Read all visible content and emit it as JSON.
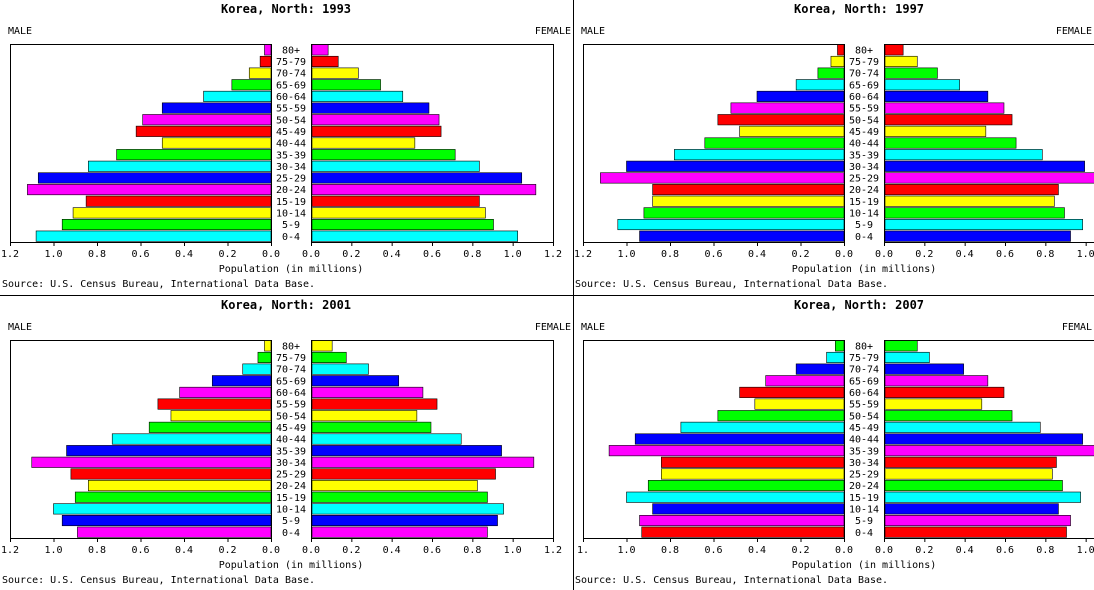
{
  "chart_data": [
    {
      "type": "bar",
      "title": "Korea, North: 1993",
      "left_label": "MALE",
      "right_label": "FEMALE",
      "xlabel": "Population (in millions)",
      "source": "Source: U.S. Census Bureau, International Data Base.",
      "xlim": [
        0,
        1.2
      ],
      "ticks": [
        "0.0",
        "0.2",
        "0.4",
        "0.6",
        "0.8",
        "1.0",
        "1.2"
      ],
      "categories": [
        "0-4",
        "5-9",
        "10-14",
        "15-19",
        "20-24",
        "25-29",
        "30-34",
        "35-39",
        "40-44",
        "45-49",
        "50-54",
        "55-59",
        "60-64",
        "65-69",
        "70-74",
        "75-79",
        "80+"
      ],
      "colors": [
        "#00ffff",
        "#00ff00",
        "#ffff00",
        "#ff0000",
        "#ff00ff",
        "#0000ff",
        "#00ffff",
        "#00ff00",
        "#ffff00",
        "#ff0000",
        "#ff00ff",
        "#0000ff",
        "#00ffff",
        "#00ff00",
        "#ffff00",
        "#ff0000",
        "#ff00ff"
      ],
      "series": [
        {
          "name": "MALE",
          "values": [
            1.08,
            0.96,
            0.91,
            0.85,
            1.12,
            1.07,
            0.84,
            0.71,
            0.5,
            0.62,
            0.59,
            0.5,
            0.31,
            0.18,
            0.1,
            0.05,
            0.03
          ]
        },
        {
          "name": "FEMALE",
          "values": [
            1.02,
            0.9,
            0.86,
            0.83,
            1.11,
            1.04,
            0.83,
            0.71,
            0.51,
            0.64,
            0.63,
            0.58,
            0.45,
            0.34,
            0.23,
            0.13,
            0.08
          ]
        }
      ]
    },
    {
      "type": "bar",
      "title": "Korea, North: 1997",
      "left_label": "MALE",
      "right_label": "FEMALE",
      "xlabel": "Population (in millions)",
      "source": "Source: U.S. Census Bureau, International Data Base.",
      "xlim": [
        0,
        1.2
      ],
      "ticks": [
        "0.0",
        "0.2",
        "0.4",
        "0.6",
        "0.8",
        "1.0",
        "1.2"
      ],
      "categories": [
        "0-4",
        "5-9",
        "10-14",
        "15-19",
        "20-24",
        "25-29",
        "30-34",
        "35-39",
        "40-44",
        "45-49",
        "50-54",
        "55-59",
        "60-64",
        "65-69",
        "70-74",
        "75-79",
        "80+"
      ],
      "colors": [
        "#0000ff",
        "#00ffff",
        "#00ff00",
        "#ffff00",
        "#ff0000",
        "#ff00ff",
        "#0000ff",
        "#00ffff",
        "#00ff00",
        "#ffff00",
        "#ff0000",
        "#ff00ff",
        "#0000ff",
        "#00ffff",
        "#00ff00",
        "#ffff00",
        "#ff0000"
      ],
      "series": [
        {
          "name": "MALE",
          "values": [
            0.94,
            1.04,
            0.92,
            0.88,
            0.88,
            1.12,
            1.0,
            0.78,
            0.64,
            0.48,
            0.58,
            0.52,
            0.4,
            0.22,
            0.12,
            0.06,
            0.03
          ]
        },
        {
          "name": "FEMALE",
          "values": [
            0.92,
            0.98,
            0.89,
            0.84,
            0.86,
            1.11,
            0.99,
            0.78,
            0.65,
            0.5,
            0.63,
            0.59,
            0.51,
            0.37,
            0.26,
            0.16,
            0.09
          ]
        }
      ]
    },
    {
      "type": "bar",
      "title": "Korea, North: 2001",
      "left_label": "MALE",
      "right_label": "FEMALE",
      "xlabel": "Population (in millions)",
      "source": "Source: U.S. Census Bureau, International Data Base.",
      "xlim": [
        0,
        1.2
      ],
      "ticks": [
        "0.0",
        "0.2",
        "0.4",
        "0.6",
        "0.8",
        "1.0",
        "1.2"
      ],
      "categories": [
        "0-4",
        "5-9",
        "10-14",
        "15-19",
        "20-24",
        "25-29",
        "30-34",
        "35-39",
        "40-44",
        "45-49",
        "50-54",
        "55-59",
        "60-64",
        "65-69",
        "70-74",
        "75-79",
        "80+"
      ],
      "colors": [
        "#ff00ff",
        "#0000ff",
        "#00ffff",
        "#00ff00",
        "#ffff00",
        "#ff0000",
        "#ff00ff",
        "#0000ff",
        "#00ffff",
        "#00ff00",
        "#ffff00",
        "#ff0000",
        "#ff00ff",
        "#0000ff",
        "#00ffff",
        "#00ff00",
        "#ffff00"
      ],
      "series": [
        {
          "name": "MALE",
          "values": [
            0.89,
            0.96,
            1.0,
            0.9,
            0.84,
            0.92,
            1.1,
            0.94,
            0.73,
            0.56,
            0.46,
            0.52,
            0.42,
            0.27,
            0.13,
            0.06,
            0.03
          ]
        },
        {
          "name": "FEMALE",
          "values": [
            0.87,
            0.92,
            0.95,
            0.87,
            0.82,
            0.91,
            1.1,
            0.94,
            0.74,
            0.59,
            0.52,
            0.62,
            0.55,
            0.43,
            0.28,
            0.17,
            0.1
          ]
        }
      ]
    },
    {
      "type": "bar",
      "title": "Korea, North: 2007",
      "left_label": "MALE",
      "right_label": "FEMAL",
      "xlabel": "Population (in millions)",
      "source": "Source: U.S. Census Bureau, International Data Base.",
      "xlim": [
        0,
        1.2
      ],
      "ticks": [
        "0.0",
        "0.2",
        "0.4",
        "0.6",
        "0.8",
        "1.0",
        "1."
      ],
      "categories": [
        "0-4",
        "5-9",
        "10-14",
        "15-19",
        "20-24",
        "25-29",
        "30-34",
        "35-39",
        "40-44",
        "45-49",
        "50-54",
        "55-59",
        "60-64",
        "65-69",
        "70-74",
        "75-79",
        "80+"
      ],
      "colors": [
        "#ff0000",
        "#ff00ff",
        "#0000ff",
        "#00ffff",
        "#00ff00",
        "#ffff00",
        "#ff0000",
        "#ff00ff",
        "#0000ff",
        "#00ffff",
        "#00ff00",
        "#ffff00",
        "#ff0000",
        "#ff00ff",
        "#0000ff",
        "#00ffff",
        "#00ff00"
      ],
      "series": [
        {
          "name": "MALE",
          "values": [
            0.93,
            0.94,
            0.88,
            1.0,
            0.9,
            0.84,
            0.84,
            1.08,
            0.96,
            0.75,
            0.58,
            0.41,
            0.48,
            0.36,
            0.22,
            0.08,
            0.04
          ]
        },
        {
          "name": "FEMALE",
          "values": [
            0.9,
            0.92,
            0.86,
            0.97,
            0.88,
            0.83,
            0.85,
            1.1,
            0.98,
            0.77,
            0.63,
            0.48,
            0.59,
            0.51,
            0.39,
            0.22,
            0.16
          ]
        }
      ]
    }
  ]
}
